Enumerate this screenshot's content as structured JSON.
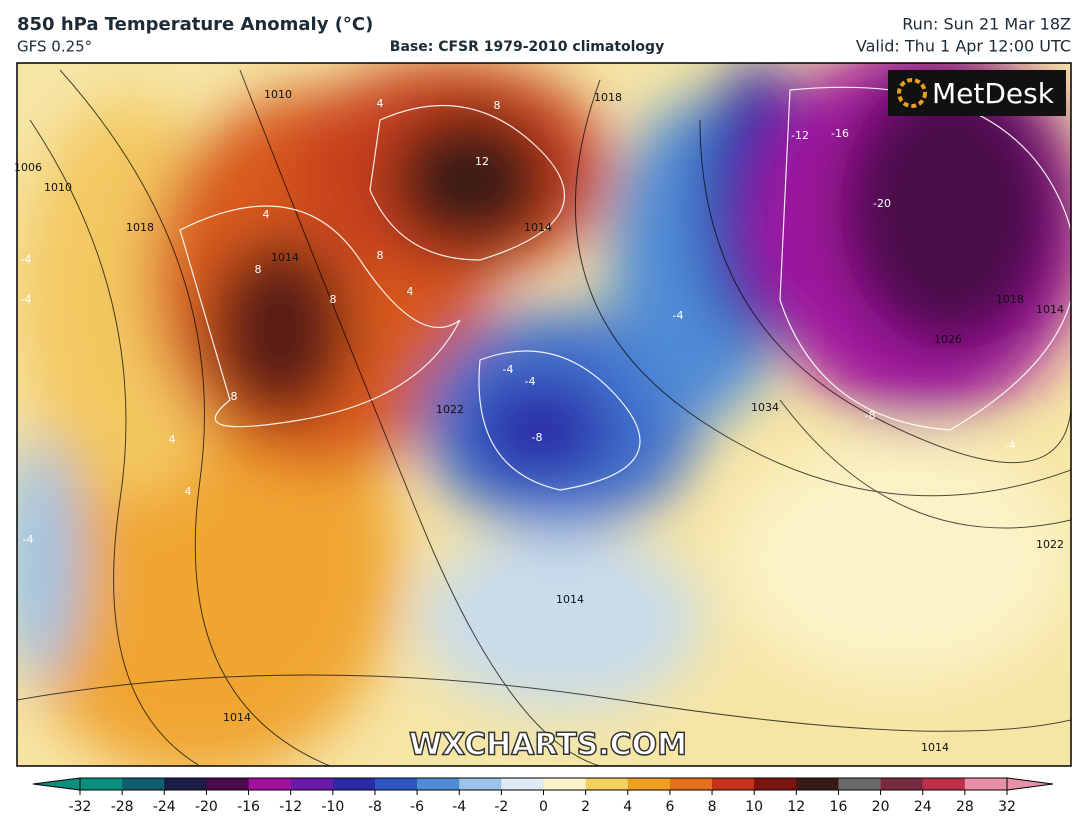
{
  "header": {
    "title": "850 hPa Temperature Anomaly (°C)",
    "model": "GFS 0.25°",
    "base": "Base: CFSR 1979-2010 climatology",
    "run": "Run: Sun 21 Mar 18Z",
    "valid": "Valid: Thu 1 Apr 12:00 UTC"
  },
  "map": {
    "logo": "MetDesk",
    "watermark": "WXCHARTS.COM",
    "contour_labels": [
      "1006",
      "1010",
      "1018",
      "1014",
      "1010",
      "1018",
      "1014",
      "1022",
      "1034",
      "1026",
      "1018",
      "1014",
      "1022",
      "1014",
      "1014",
      "1014",
      "4",
      "8",
      "12",
      "8",
      "4",
      "8",
      "8",
      "4",
      "4",
      "8",
      "4",
      "-4",
      "-4",
      "-4",
      "-4",
      "-8",
      "-4",
      "-12",
      "-16",
      "-20",
      "-8",
      "-4",
      "-4"
    ]
  },
  "colorbar": {
    "ticks": [
      -32,
      -28,
      -24,
      -20,
      -16,
      -12,
      -10,
      -8,
      -6,
      -4,
      -2,
      0,
      2,
      4,
      6,
      8,
      10,
      12,
      16,
      20,
      24,
      28,
      32
    ],
    "colors": [
      "#0b8f7c",
      "#0f5f6f",
      "#1b1b4a",
      "#4a0a4a",
      "#a0129e",
      "#6a1aa8",
      "#2a2aa8",
      "#2f55c0",
      "#4f8cd6",
      "#9cc4e8",
      "#dfeaf2",
      "#fbf3c8",
      "#f4d060",
      "#f0a020",
      "#e8701a",
      "#c8301a",
      "#7a1410",
      "#3a1a14",
      "#6a6a6a",
      "#7a2a40",
      "#c0304a",
      "#e890a8"
    ]
  }
}
